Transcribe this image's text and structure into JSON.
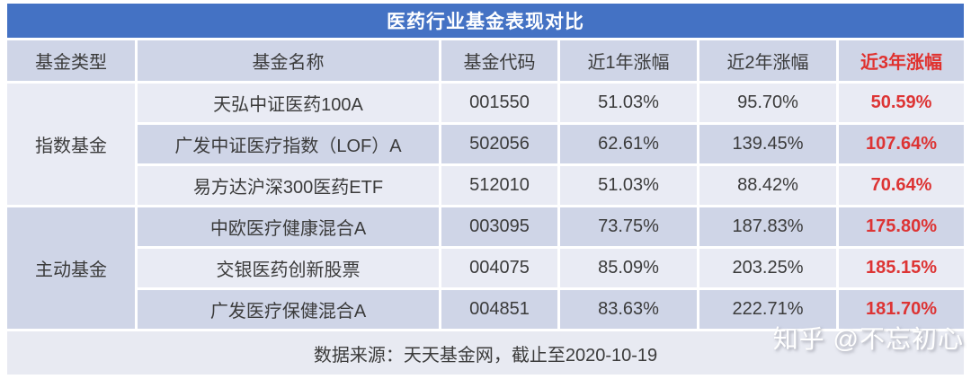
{
  "title": "医药行业基金表现对比",
  "header": {
    "col_type": "基金类型",
    "col_name": "基金名称",
    "col_code": "基金代码",
    "col_y1": "近1年涨幅",
    "col_y2": "近2年涨幅",
    "col_y3": "近3年涨幅"
  },
  "groups": [
    {
      "type": "指数基金"
    },
    {
      "type": "主动基金"
    }
  ],
  "rows": [
    {
      "name": "天弘中证医药100A",
      "code": "001550",
      "y1": "51.03%",
      "y2": "95.70%",
      "y3": "50.59%"
    },
    {
      "name": "广发中证医疗指数（LOF）A",
      "code": "502056",
      "y1": "62.61%",
      "y2": "139.45%",
      "y3": "107.64%"
    },
    {
      "name": "易方达沪深300医药ETF",
      "code": "512010",
      "y1": "51.03%",
      "y2": "88.42%",
      "y3": "70.64%"
    },
    {
      "name": "中欧医疗健康混合A",
      "code": "003095",
      "y1": "73.75%",
      "y2": "187.83%",
      "y3": "175.80%"
    },
    {
      "name": "交银医药创新股票",
      "code": "004075",
      "y1": "85.09%",
      "y2": "203.25%",
      "y3": "185.15%"
    },
    {
      "name": "广发医疗保健混合A",
      "code": "004851",
      "y1": "83.63%",
      "y2": "222.71%",
      "y3": "181.70%"
    }
  ],
  "footer": "数据来源：天天基金网，截止至2020-10-19",
  "watermark": "知乎 @不忘初心",
  "colors": {
    "title_bg": "#4472c4",
    "row_dark": "#cfd5e7",
    "row_light": "#e9ebf4",
    "accent_red": "#dd3434",
    "text": "#3b3b3b"
  },
  "chart_data": {
    "type": "table",
    "title": "医药行业基金表现对比",
    "columns": [
      "基金类型",
      "基金名称",
      "基金代码",
      "近1年涨幅",
      "近2年涨幅",
      "近3年涨幅"
    ],
    "rows": [
      [
        "指数基金",
        "天弘中证医药100A",
        "001550",
        "51.03%",
        "95.70%",
        "50.59%"
      ],
      [
        "指数基金",
        "广发中证医疗指数（LOF）A",
        "502056",
        "62.61%",
        "139.45%",
        "107.64%"
      ],
      [
        "指数基金",
        "易方达沪深300医药ETF",
        "512010",
        "51.03%",
        "88.42%",
        "70.64%"
      ],
      [
        "主动基金",
        "中欧医疗健康混合A",
        "003095",
        "73.75%",
        "187.83%",
        "175.80%"
      ],
      [
        "主动基金",
        "交银医药创新股票",
        "004075",
        "85.09%",
        "203.25%",
        "185.15%"
      ],
      [
        "主动基金",
        "广发医疗保健混合A",
        "004851",
        "83.63%",
        "222.71%",
        "181.70%"
      ]
    ],
    "highlight_column": "近3年涨幅",
    "note": "数据来源：天天基金网，截止至2020-10-19"
  }
}
